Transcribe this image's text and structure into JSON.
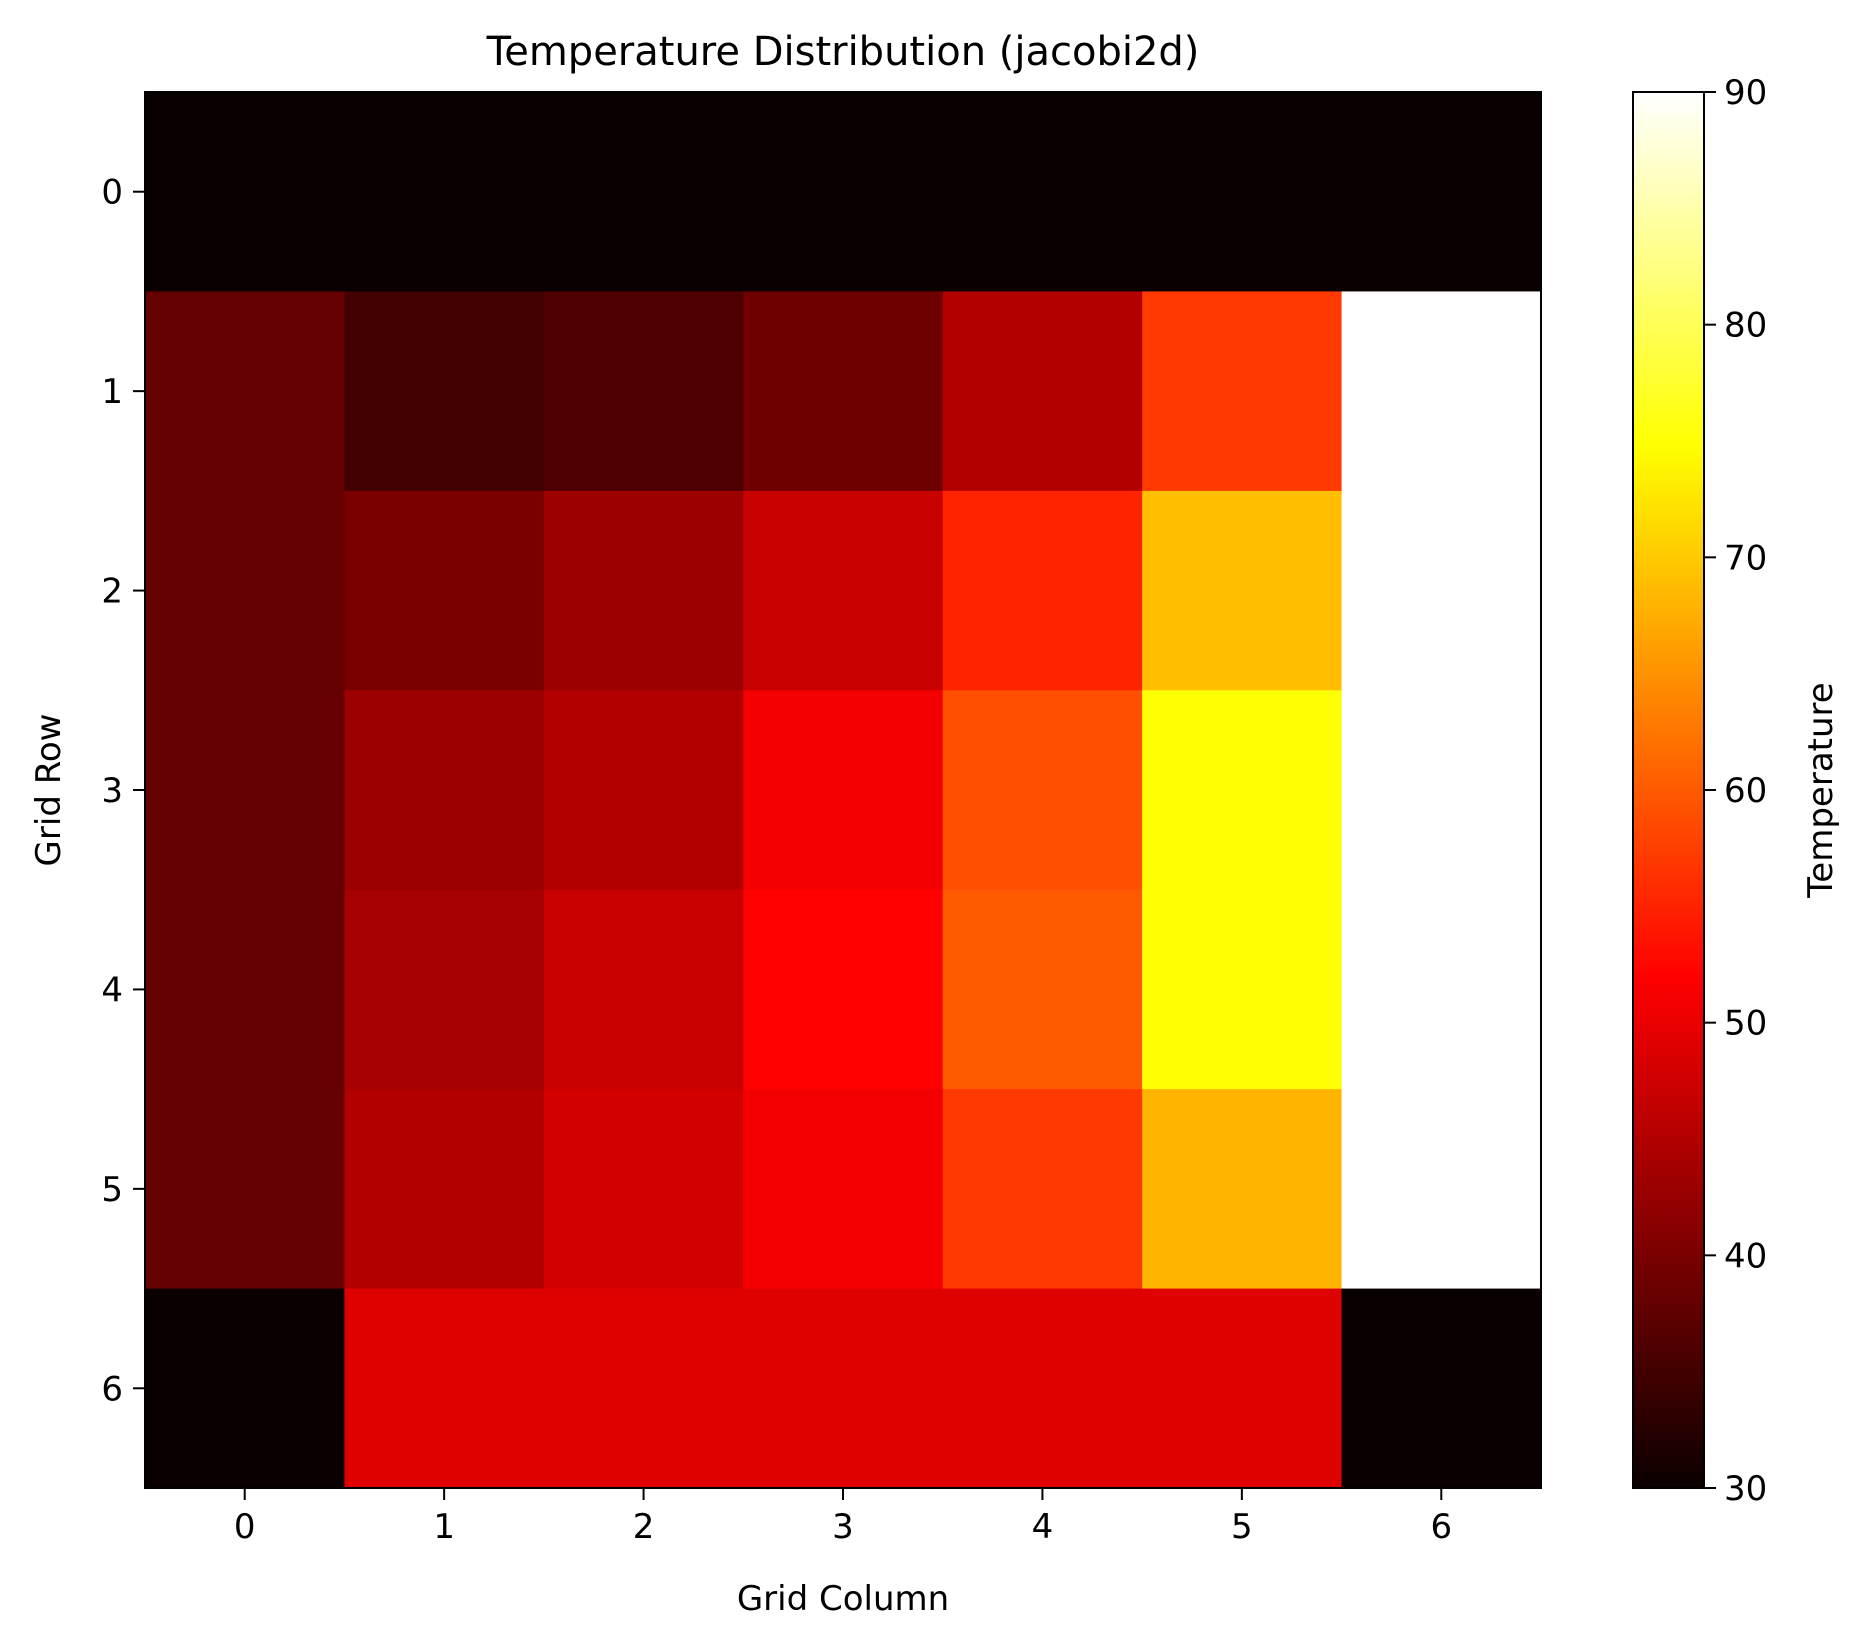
{
  "chart_data": {
    "type": "heatmap",
    "title": "Temperature Distribution (jacobi2d)",
    "xlabel": "Grid Column",
    "ylabel": "Grid Row",
    "x_categories": [
      "0",
      "1",
      "2",
      "3",
      "4",
      "5",
      "6"
    ],
    "y_categories": [
      "0",
      "1",
      "2",
      "3",
      "4",
      "5",
      "6"
    ],
    "values": [
      [
        30,
        30,
        30,
        30,
        30,
        30,
        30
      ],
      [
        38,
        35,
        36,
        39,
        45,
        57,
        90
      ],
      [
        38,
        40,
        43,
        47,
        55,
        69,
        90
      ],
      [
        38,
        43,
        45,
        51,
        59,
        75,
        90
      ],
      [
        38,
        44,
        47,
        52,
        60,
        75,
        90
      ],
      [
        38,
        45,
        48,
        51,
        57,
        68,
        90
      ],
      [
        30,
        49,
        49,
        49,
        49,
        49,
        30
      ]
    ],
    "colormap": "hot",
    "colorbar": {
      "label": "Temperature",
      "min": 30,
      "max": 90,
      "ticks": [
        "30",
        "40",
        "50",
        "60",
        "70",
        "80",
        "90"
      ]
    },
    "grid": false,
    "legend": "none"
  }
}
